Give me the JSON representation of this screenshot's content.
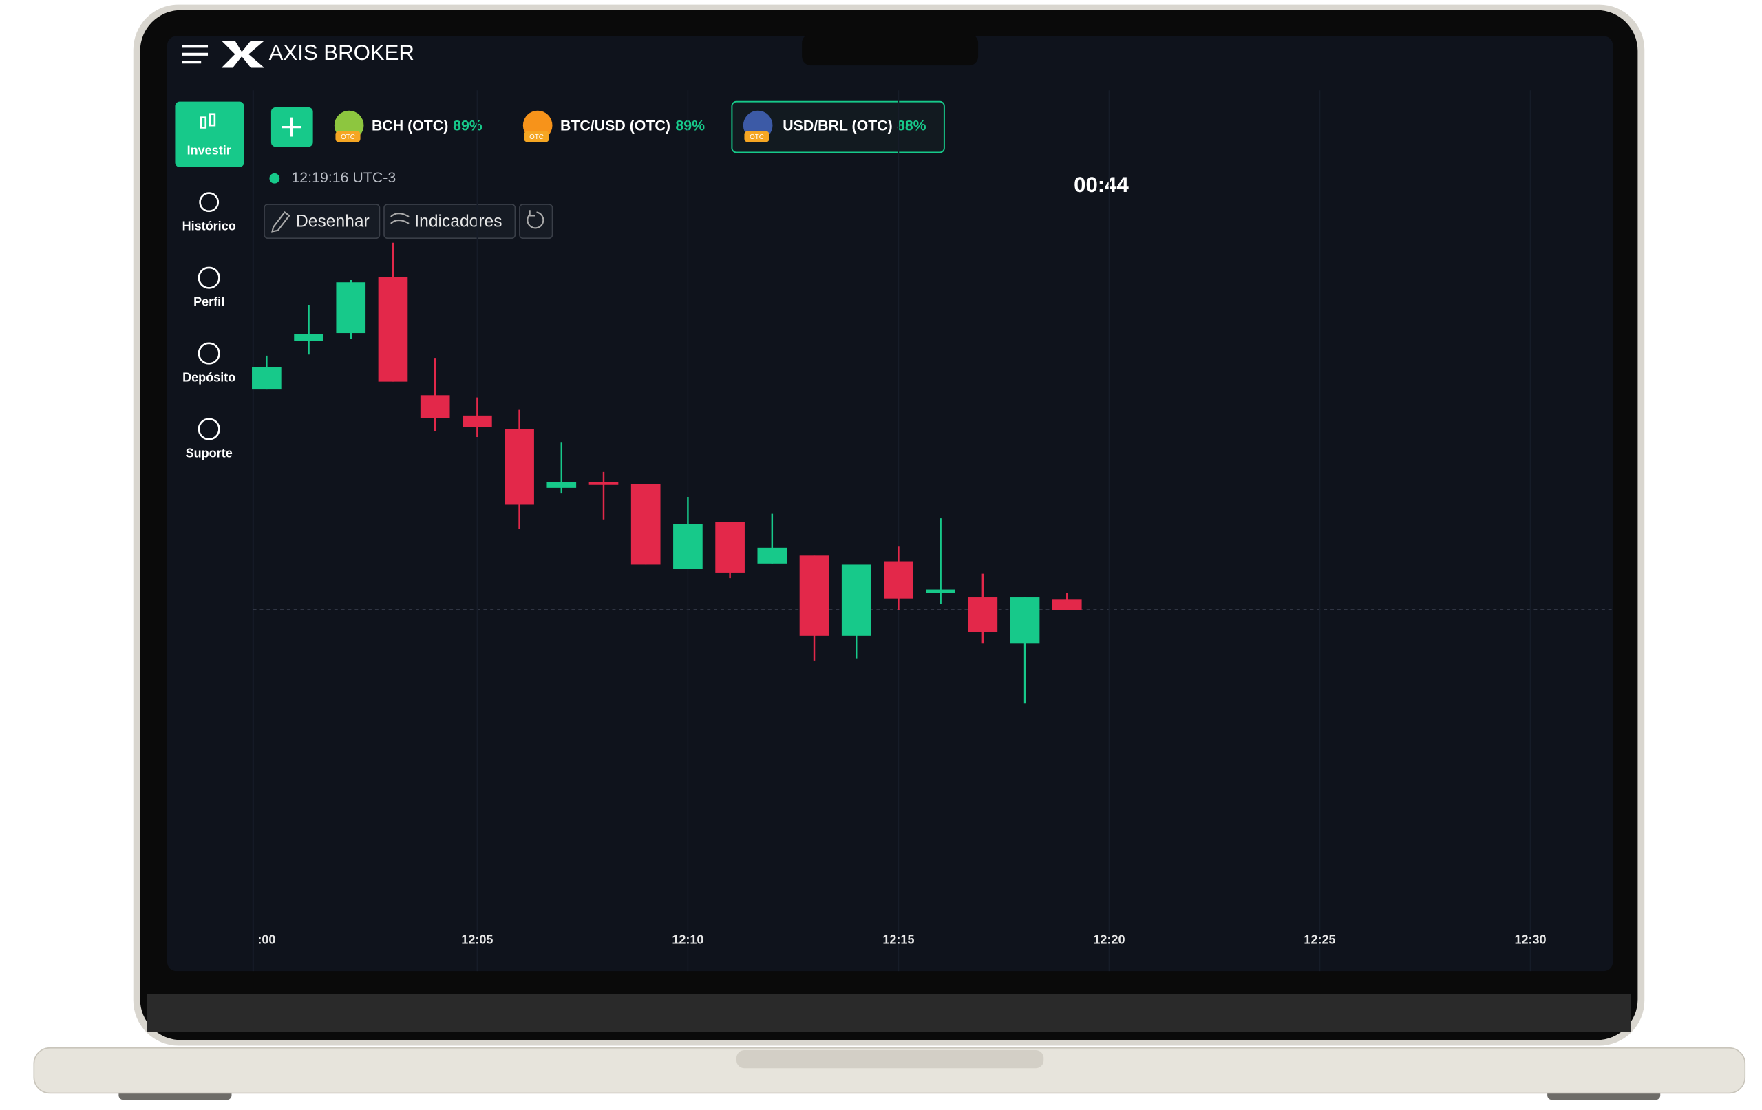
{
  "header": {
    "brand": "AXIS BROKER"
  },
  "sidebar": {
    "items": [
      "Investir",
      "Histórico",
      "Perfil",
      "Depósito",
      "Suporte"
    ]
  },
  "assets": [
    {
      "name": "BCH (OTC)",
      "payout": "89%"
    },
    {
      "name": "BTC/USD (OTC)",
      "payout": "89%"
    },
    {
      "name": "USD/BRL (OTC)",
      "payout": "88%"
    }
  ],
  "badge": "OTC",
  "clock": "12:19:16 UTC-3",
  "timer": "00:44",
  "tools": [
    "Desenhar",
    "Indicadores"
  ],
  "chart_data": {
    "type": "candlestick",
    "x_labels": [
      ":00",
      "12:05",
      "12:10",
      "12:15",
      "12:20",
      "12:25",
      "12:30"
    ],
    "up_color": "#17c98a",
    "down_color": "#e3284a",
    "candles": {
      "open": [
        355,
        398,
        405,
        455,
        350,
        332,
        320,
        268,
        273,
        271,
        196,
        238,
        201,
        208,
        137,
        203,
        175,
        171,
        130,
        169
      ],
      "high": [
        385,
        430,
        452,
        485,
        383,
        348,
        337,
        308,
        282,
        271,
        260,
        238,
        245,
        208,
        200,
        216,
        241,
        192,
        171,
        175
      ],
      "low": [
        355,
        386,
        400,
        362,
        318,
        313,
        232,
        263,
        240,
        200,
        196,
        188,
        201,
        115,
        117,
        160,
        165,
        130,
        77,
        160
      ],
      "close": [
        375,
        404,
        450,
        362,
        330,
        322,
        253,
        273,
        271,
        200,
        236,
        193,
        215,
        137,
        200,
        170,
        178,
        140,
        171,
        160
      ]
    }
  }
}
